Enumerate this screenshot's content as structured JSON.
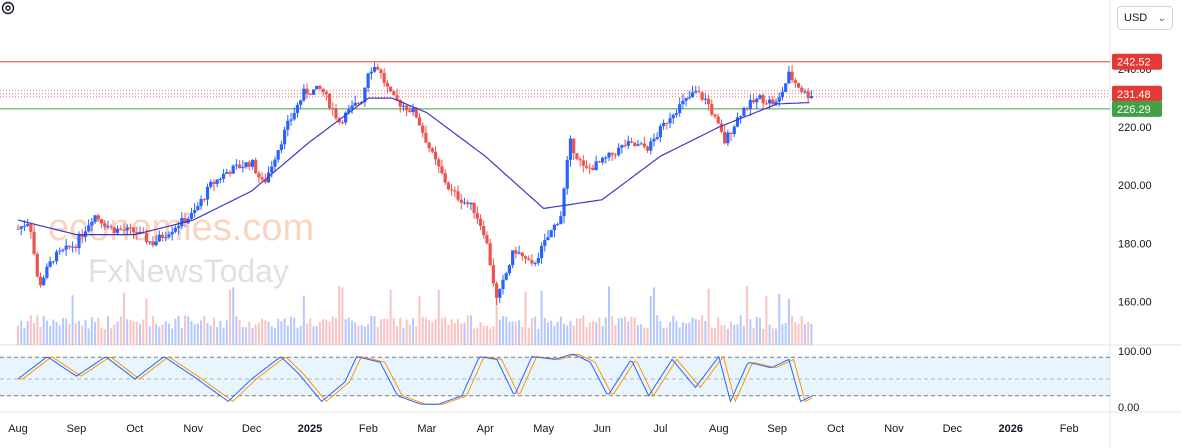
{
  "currency_selector": {
    "label": "USD"
  },
  "watermark": {
    "line1": "economies.com",
    "line2": "FxNewsToday"
  },
  "chart_data": {
    "type": "candlestick",
    "price_axis": {
      "ticks": [
        "240.00",
        "220.00",
        "200.00",
        "180.00",
        "160.00"
      ],
      "range": [
        145,
        250
      ]
    },
    "oscillator_axis": {
      "ticks": [
        "100.00",
        "0.00"
      ],
      "range": [
        0,
        100
      ],
      "band": [
        20,
        80
      ]
    },
    "time_axis": [
      {
        "label": "Aug",
        "bold": false,
        "x": 0
      },
      {
        "label": "Sep",
        "bold": false,
        "x": 1
      },
      {
        "label": "Oct",
        "bold": false,
        "x": 2
      },
      {
        "label": "Nov",
        "bold": false,
        "x": 3
      },
      {
        "label": "Dec",
        "bold": false,
        "x": 4
      },
      {
        "label": "2025",
        "bold": true,
        "x": 5
      },
      {
        "label": "Feb",
        "bold": false,
        "x": 6
      },
      {
        "label": "Mar",
        "bold": false,
        "x": 7
      },
      {
        "label": "Apr",
        "bold": false,
        "x": 8
      },
      {
        "label": "May",
        "bold": false,
        "x": 9
      },
      {
        "label": "Jun",
        "bold": false,
        "x": 10
      },
      {
        "label": "Jul",
        "bold": false,
        "x": 11
      },
      {
        "label": "Aug",
        "bold": false,
        "x": 12
      },
      {
        "label": "Sep",
        "bold": false,
        "x": 13
      },
      {
        "label": "Oct",
        "bold": false,
        "x": 14
      },
      {
        "label": "Nov",
        "bold": false,
        "x": 15
      },
      {
        "label": "Dec",
        "bold": false,
        "x": 16
      },
      {
        "label": "2026",
        "bold": true,
        "x": 17
      },
      {
        "label": "Feb",
        "bold": false,
        "x": 18
      }
    ],
    "levels": [
      {
        "value": 242.52,
        "label": "242.52",
        "color": "#e53935",
        "style": "solid"
      },
      {
        "value": 231.48,
        "label": "231.48",
        "color": "#e53935",
        "style": "dotted"
      },
      {
        "value": 226.29,
        "label": "226.29",
        "color": "#43a047",
        "style": "solid"
      }
    ],
    "colors": {
      "up": "#2962ff",
      "down": "#ef5350",
      "ma": "#3f37c9",
      "osc_k": "#2962ff",
      "osc_d": "#ff9800"
    },
    "price_path": [
      [
        0,
        185
      ],
      [
        0.2,
        188
      ],
      [
        0.35,
        165
      ],
      [
        0.6,
        175
      ],
      [
        1.0,
        180
      ],
      [
        1.3,
        190
      ],
      [
        1.6,
        185
      ],
      [
        2.0,
        184
      ],
      [
        2.3,
        180
      ],
      [
        2.7,
        186
      ],
      [
        3.0,
        190
      ],
      [
        3.3,
        200
      ],
      [
        3.6,
        205
      ],
      [
        4.0,
        208
      ],
      [
        4.2,
        200
      ],
      [
        4.6,
        220
      ],
      [
        4.9,
        232
      ],
      [
        5.2,
        233
      ],
      [
        5.5,
        222
      ],
      [
        5.9,
        230
      ],
      [
        6.0,
        240
      ],
      [
        6.15,
        241
      ],
      [
        6.4,
        230
      ],
      [
        6.8,
        225
      ],
      [
        7.1,
        210
      ],
      [
        7.4,
        198
      ],
      [
        7.8,
        192
      ],
      [
        8.0,
        183
      ],
      [
        8.2,
        160
      ],
      [
        8.5,
        178
      ],
      [
        8.8,
        172
      ],
      [
        9.1,
        183
      ],
      [
        9.3,
        190
      ],
      [
        9.45,
        215
      ],
      [
        9.7,
        205
      ],
      [
        10.0,
        208
      ],
      [
        10.4,
        214
      ],
      [
        10.8,
        213
      ],
      [
        11.2,
        225
      ],
      [
        11.6,
        232
      ],
      [
        11.8,
        229
      ],
      [
        12.1,
        215
      ],
      [
        12.4,
        226
      ],
      [
        12.7,
        230
      ],
      [
        13.0,
        228
      ],
      [
        13.2,
        238
      ],
      [
        13.5,
        231
      ],
      [
        13.6,
        231.5
      ]
    ],
    "ma_path": [
      [
        0,
        188
      ],
      [
        1,
        183
      ],
      [
        2,
        183
      ],
      [
        3,
        188
      ],
      [
        4,
        198
      ],
      [
        5,
        215
      ],
      [
        6,
        230
      ],
      [
        6.4,
        230
      ],
      [
        7,
        225
      ],
      [
        8,
        210
      ],
      [
        9,
        192
      ],
      [
        10,
        195
      ],
      [
        11,
        210
      ],
      [
        12,
        220
      ],
      [
        13,
        228
      ],
      [
        13.6,
        228.5
      ]
    ],
    "osc_path": [
      [
        0,
        50
      ],
      [
        0.5,
        90
      ],
      [
        1.0,
        55
      ],
      [
        1.5,
        90
      ],
      [
        2.0,
        50
      ],
      [
        2.5,
        90
      ],
      [
        3.0,
        55
      ],
      [
        3.6,
        10
      ],
      [
        4.0,
        50
      ],
      [
        4.5,
        90
      ],
      [
        4.8,
        60
      ],
      [
        5.2,
        10
      ],
      [
        5.6,
        45
      ],
      [
        5.8,
        90
      ],
      [
        6.2,
        80
      ],
      [
        6.5,
        20
      ],
      [
        6.9,
        5
      ],
      [
        7.2,
        5
      ],
      [
        7.6,
        20
      ],
      [
        7.9,
        90
      ],
      [
        8.2,
        85
      ],
      [
        8.5,
        20
      ],
      [
        8.8,
        90
      ],
      [
        9.2,
        85
      ],
      [
        9.5,
        95
      ],
      [
        9.8,
        80
      ],
      [
        10.1,
        20
      ],
      [
        10.5,
        85
      ],
      [
        10.8,
        20
      ],
      [
        11.2,
        85
      ],
      [
        11.6,
        35
      ],
      [
        12.0,
        90
      ],
      [
        12.2,
        10
      ],
      [
        12.5,
        80
      ],
      [
        12.9,
        70
      ],
      [
        13.2,
        85
      ],
      [
        13.4,
        10
      ],
      [
        13.6,
        20
      ]
    ]
  }
}
